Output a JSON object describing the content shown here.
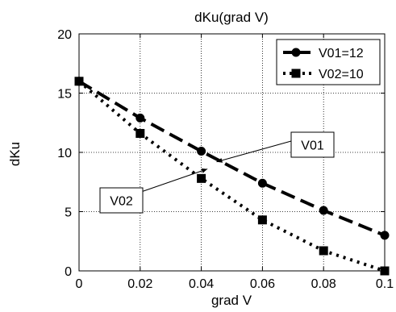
{
  "chart_data": {
    "type": "line",
    "title": "dKu(grad V)",
    "xlabel": "grad V",
    "ylabel": "dKu",
    "xlim": [
      0,
      0.1
    ],
    "ylim": [
      0,
      20
    ],
    "xticks": [
      0,
      0.02,
      0.04,
      0.06,
      0.08,
      0.1
    ],
    "xtick_labels": [
      "0",
      "0.02",
      "0.04",
      "0.06",
      "0.08",
      "0.1"
    ],
    "yticks": [
      0,
      5,
      10,
      15,
      20
    ],
    "ytick_labels": [
      "0",
      "5",
      "10",
      "15",
      "20"
    ],
    "grid": true,
    "legend_position": "top-right",
    "series": [
      {
        "name": "V01=12",
        "line_style": "dashed",
        "marker": "circle",
        "color": "#000000",
        "x": [
          0,
          0.02,
          0.04,
          0.06,
          0.08,
          0.1
        ],
        "y": [
          16,
          12.9,
          10.1,
          7.4,
          5.1,
          3.0
        ]
      },
      {
        "name": "V02=10",
        "line_style": "dotted",
        "marker": "square",
        "color": "#000000",
        "x": [
          0,
          0.02,
          0.04,
          0.06,
          0.08,
          0.1
        ],
        "y": [
          16,
          11.6,
          7.8,
          4.3,
          1.7,
          0
        ]
      }
    ],
    "annotations": [
      {
        "text": "V01",
        "target": {
          "x": 0.045,
          "y": 9.2
        }
      },
      {
        "text": "V02",
        "target": {
          "x": 0.042,
          "y": 8.6
        }
      }
    ]
  }
}
